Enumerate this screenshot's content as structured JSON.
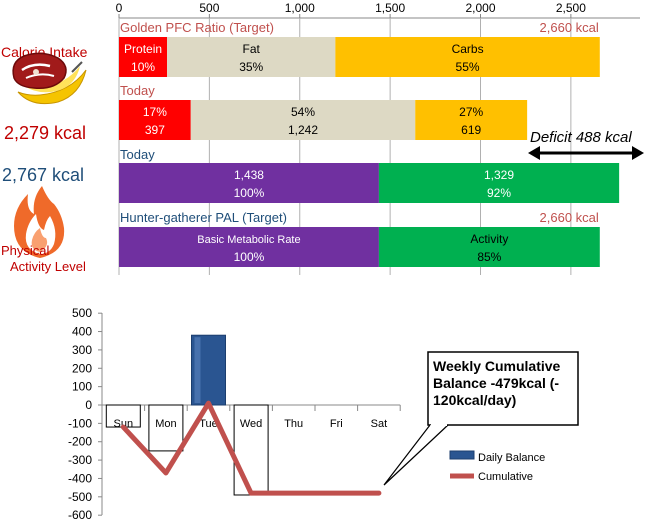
{
  "colors": {
    "protein": "#ff0000",
    "fat": "#ddd9c4",
    "carbs": "#ffc000",
    "bmr": "#7030a0",
    "activity": "#00b050",
    "daily_bar": "#2a5591",
    "cumulative": "#c0504d",
    "target_label": "#c0504d",
    "today_label": "#1f4e79",
    "grid": "#b0b0b0"
  },
  "left_panel": {
    "calorie_intake_label": "Calorie Intake",
    "calorie_intake_value": "2,279 kcal",
    "physical_value": "2,767 kcal",
    "physical_label_1": "Physical",
    "physical_label_2": "Activity Level",
    "food_icon": "meat-and-banana-icon",
    "fire_icon": "flame-icon"
  },
  "deficit_label": "Deficit 488 kcal",
  "chart_data": [
    {
      "type": "bar",
      "orientation": "horizontal",
      "stacked": true,
      "x_ticks": [
        "0",
        "500",
        "1,000",
        "1,500",
        "2,000",
        "2,500"
      ],
      "xlim": [
        0,
        2800
      ],
      "grid": true,
      "rows": [
        {
          "title": "Golden PFC Ratio (Target)",
          "total_label": "2,660 kcal",
          "segments": [
            {
              "name": "Protein",
              "value": 266,
              "label1": "Protein",
              "label2": "10%"
            },
            {
              "name": "Fat",
              "value": 931,
              "label1": "Fat",
              "label2": "35%"
            },
            {
              "name": "Carbs",
              "value": 1463,
              "label1": "Carbs",
              "label2": "55%"
            }
          ]
        },
        {
          "title": "Today",
          "total_label": "",
          "segments": [
            {
              "name": "Protein",
              "value": 397,
              "label1": "17%",
              "label2": "397"
            },
            {
              "name": "Fat",
              "value": 1242,
              "label1": "54%",
              "label2": "1,242"
            },
            {
              "name": "Carbs",
              "value": 619,
              "label1": "27%",
              "label2": "619"
            }
          ]
        },
        {
          "title": "Today",
          "total_label": "",
          "segments": [
            {
              "name": "Basic Metabolic Rate",
              "value": 1438,
              "label1": "1,438",
              "label2": "100%"
            },
            {
              "name": "Activity",
              "value": 1329,
              "label1": "1,329",
              "label2": "92%"
            }
          ]
        },
        {
          "title": "Hunter-gatherer  PAL (Target)",
          "total_label": "2,660 kcal",
          "segments": [
            {
              "name": "Basic Metabolic Rate",
              "value": 1438,
              "label1": "Basic Metabolic Rate",
              "label2": "100%"
            },
            {
              "name": "Activity",
              "value": 1222,
              "label1": "Activity",
              "label2": "85%"
            }
          ]
        }
      ]
    },
    {
      "type": "bar",
      "categories": [
        "Sun",
        "Mon",
        "Tue",
        "Wed",
        "Thu",
        "Fri",
        "Sat"
      ],
      "ylim": [
        -600,
        500
      ],
      "y_ticks": [
        "500",
        "400",
        "300",
        "200",
        "100",
        "0",
        "-100",
        "-200",
        "-300",
        "-400",
        "-500",
        "-600"
      ],
      "grid": true,
      "series": [
        {
          "name": "Daily Balance",
          "type": "bar",
          "values": [
            -120,
            -250,
            380,
            -490,
            null,
            null,
            null
          ]
        },
        {
          "name": "Cumulative",
          "type": "line",
          "values": [
            -120,
            -370,
            10,
            -480,
            -480,
            -480,
            -480
          ]
        }
      ],
      "legend": "right",
      "annotation": "Weekly Cumulative Balance -479kcal (-120kcal/day)"
    }
  ]
}
